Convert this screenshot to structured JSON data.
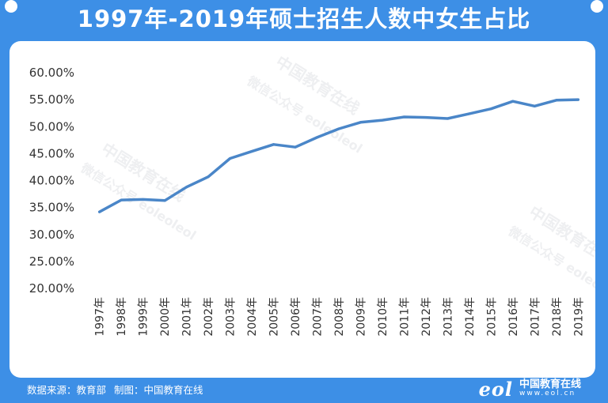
{
  "title": "1997年-2019年硕士招生人数中女生占比",
  "footer": {
    "source_label": "数据来源：教育部",
    "made_by_label": "制图：中国教育在线"
  },
  "brand": {
    "logo": "eol",
    "name": "中国教育在线",
    "url": "www.eol.cn"
  },
  "watermarks": [
    "中国教育在线",
    "微信公众号 eoleoleol"
  ],
  "colors": {
    "background": "#3d8fe6",
    "line": "#4a86c8",
    "axis_text": "#333333"
  },
  "chart_data": {
    "type": "line",
    "categories": [
      "1997年",
      "1998年",
      "1999年",
      "2000年",
      "2001年",
      "2002年",
      "2003年",
      "2004年",
      "2005年",
      "2006年",
      "2007年",
      "2008年",
      "2009年",
      "2010年",
      "2011年",
      "2012年",
      "2013年",
      "2014年",
      "2015年",
      "2016年",
      "2017年",
      "2018年",
      "2019年"
    ],
    "series": [
      {
        "values": [
          34.2,
          36.4,
          36.5,
          36.3,
          38.8,
          40.7,
          44.1,
          45.4,
          46.7,
          46.2,
          48.0,
          49.6,
          50.8,
          51.2,
          51.8,
          51.7,
          51.5,
          52.4,
          53.3,
          54.7,
          53.8,
          54.9,
          55.0
        ]
      }
    ],
    "ylim": [
      20,
      60
    ],
    "yticks": [
      "20.00%",
      "25.00%",
      "30.00%",
      "35.00%",
      "40.00%",
      "45.00%",
      "50.00%",
      "55.00%",
      "60.00%"
    ],
    "ytick_values": [
      20,
      25,
      30,
      35,
      40,
      45,
      50,
      55,
      60
    ],
    "grid": false
  }
}
